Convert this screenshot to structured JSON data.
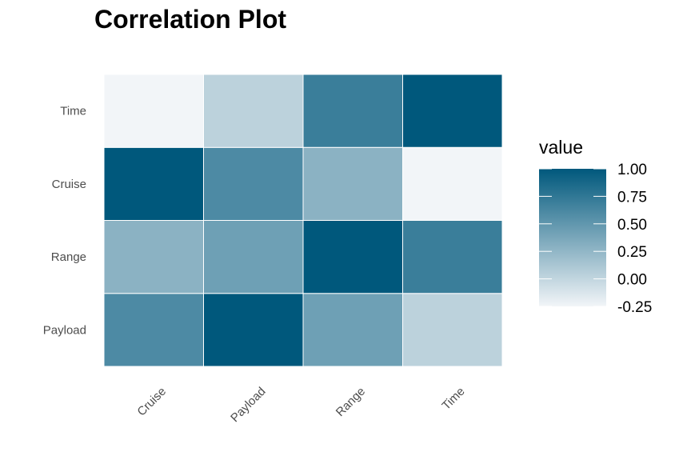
{
  "chart_data": {
    "type": "heatmap",
    "title": "Correlation Plot",
    "xlabel": "",
    "ylabel": "",
    "x_categories": [
      "Cruise",
      "Payload",
      "Range",
      "Time"
    ],
    "y_categories": [
      "Payload",
      "Range",
      "Cruise",
      "Time"
    ],
    "values": [
      [
        0.6,
        1.0,
        0.43,
        0.03
      ],
      [
        0.28,
        0.43,
        1.0,
        0.7
      ],
      [
        1.0,
        0.6,
        0.28,
        -0.25
      ],
      [
        -0.25,
        0.03,
        0.7,
        1.0
      ]
    ],
    "legend": {
      "title": "value",
      "position": "right",
      "ticks": [
        "1.00",
        "0.75",
        "0.50",
        "0.25",
        "0.00",
        "-0.25"
      ],
      "tick_values": [
        1.0,
        0.75,
        0.5,
        0.25,
        0.0,
        -0.25
      ],
      "range": [
        -0.25,
        1.0
      ]
    },
    "colors": {
      "low": "#f2f5f8",
      "high": "#00587c",
      "cell_border": "#ffffff"
    },
    "grid": false
  }
}
